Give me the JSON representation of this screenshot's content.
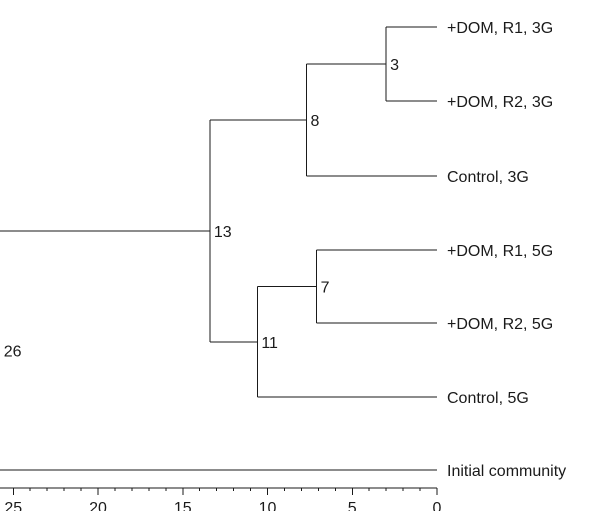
{
  "chart_data": {
    "type": "dendrogram",
    "xlim": [
      26,
      0
    ],
    "x_ticks": [
      25,
      20,
      15,
      10,
      5,
      0
    ],
    "x_tick_labels": [
      "25",
      "20",
      "15",
      "10",
      "5",
      "0"
    ],
    "leaves": [
      "+DOM, R1, 3G",
      "+DOM, R2, 3G",
      "Control, 3G",
      "+DOM, R1, 5G",
      "+DOM, R2, 5G",
      "Control, 5G",
      "Initial community"
    ],
    "nodes": [
      {
        "label": "3",
        "height": 3,
        "children": [
          "leaf:0",
          "leaf:1"
        ]
      },
      {
        "label": "8",
        "height": 7.7,
        "children": [
          "node:0",
          "leaf:2"
        ]
      },
      {
        "label": "7",
        "height": 7.1,
        "children": [
          "leaf:3",
          "leaf:4"
        ]
      },
      {
        "label": "11",
        "height": 10.6,
        "children": [
          "node:2",
          "leaf:5"
        ]
      },
      {
        "label": "13",
        "height": 13.4,
        "children": [
          "node:1",
          "node:3"
        ]
      },
      {
        "label": "26",
        "height": 25.8,
        "children": [
          "node:4",
          "leaf:6"
        ]
      }
    ]
  }
}
